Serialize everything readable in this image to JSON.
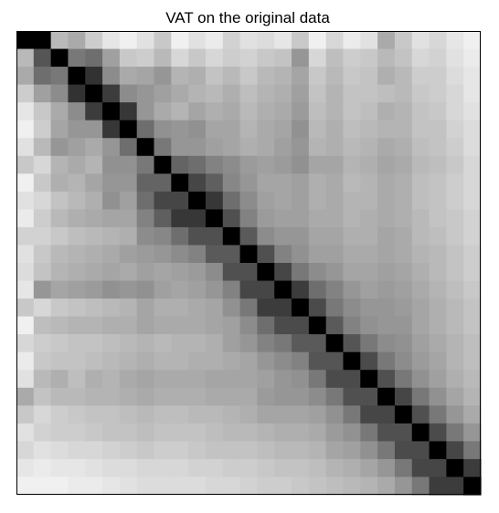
{
  "chart_data": {
    "type": "heatmap",
    "title": "VAT on the original data",
    "n": 27,
    "value_range": [
      0,
      255
    ],
    "colormap": "gray",
    "grid": false,
    "xticks": "none",
    "yticks": "none",
    "matrix": [
      [
        0,
        0,
        185,
        170,
        205,
        230,
        240,
        225,
        200,
        240,
        225,
        235,
        210,
        225,
        220,
        230,
        200,
        240,
        215,
        235,
        225,
        170,
        200,
        225,
        215,
        230,
        240
      ],
      [
        185,
        85,
        0,
        120,
        110,
        160,
        200,
        205,
        185,
        215,
        200,
        215,
        205,
        210,
        200,
        195,
        150,
        215,
        190,
        205,
        200,
        185,
        195,
        215,
        210,
        225,
        235
      ],
      [
        170,
        110,
        120,
        0,
        50,
        140,
        170,
        165,
        150,
        180,
        175,
        195,
        185,
        200,
        185,
        180,
        165,
        200,
        185,
        200,
        195,
        175,
        185,
        205,
        205,
        220,
        230
      ],
      [
        205,
        160,
        140,
        50,
        0,
        60,
        140,
        150,
        160,
        170,
        180,
        185,
        175,
        190,
        180,
        175,
        160,
        195,
        180,
        195,
        195,
        190,
        185,
        200,
        205,
        215,
        230
      ],
      [
        230,
        200,
        170,
        140,
        60,
        0,
        55,
        150,
        170,
        180,
        165,
        175,
        170,
        185,
        175,
        170,
        155,
        190,
        180,
        195,
        190,
        175,
        180,
        195,
        200,
        215,
        225
      ],
      [
        240,
        205,
        165,
        150,
        150,
        55,
        0,
        110,
        145,
        150,
        145,
        165,
        165,
        180,
        170,
        165,
        145,
        185,
        175,
        190,
        185,
        180,
        180,
        195,
        195,
        210,
        220
      ],
      [
        225,
        185,
        150,
        160,
        170,
        150,
        110,
        0,
        120,
        150,
        150,
        160,
        165,
        175,
        170,
        160,
        150,
        180,
        175,
        185,
        180,
        170,
        175,
        190,
        195,
        205,
        220
      ],
      [
        200,
        215,
        180,
        170,
        180,
        145,
        145,
        120,
        0,
        100,
        110,
        130,
        140,
        155,
        160,
        155,
        145,
        165,
        165,
        180,
        175,
        165,
        170,
        185,
        190,
        200,
        215
      ],
      [
        240,
        200,
        175,
        180,
        165,
        150,
        150,
        100,
        100,
        0,
        70,
        95,
        135,
        150,
        165,
        165,
        160,
        175,
        170,
        185,
        180,
        170,
        175,
        190,
        195,
        205,
        215
      ],
      [
        225,
        215,
        195,
        185,
        175,
        145,
        160,
        110,
        70,
        70,
        0,
        55,
        110,
        140,
        160,
        165,
        160,
        175,
        170,
        180,
        180,
        170,
        175,
        190,
        195,
        205,
        215
      ],
      [
        235,
        205,
        185,
        175,
        170,
        165,
        165,
        130,
        95,
        55,
        55,
        0,
        80,
        130,
        155,
        160,
        160,
        170,
        170,
        180,
        175,
        170,
        175,
        185,
        195,
        200,
        210
      ],
      [
        210,
        210,
        200,
        190,
        185,
        180,
        175,
        140,
        135,
        110,
        80,
        80,
        0,
        90,
        140,
        150,
        150,
        165,
        165,
        175,
        175,
        165,
        170,
        185,
        190,
        200,
        210
      ],
      [
        225,
        200,
        185,
        180,
        175,
        170,
        160,
        155,
        150,
        140,
        130,
        90,
        90,
        0,
        80,
        130,
        145,
        160,
        160,
        170,
        170,
        165,
        170,
        180,
        185,
        195,
        205
      ],
      [
        220,
        195,
        180,
        175,
        170,
        165,
        170,
        160,
        165,
        160,
        155,
        140,
        80,
        80,
        0,
        70,
        120,
        140,
        150,
        165,
        165,
        160,
        165,
        175,
        185,
        195,
        205
      ],
      [
        230,
        150,
        165,
        160,
        155,
        145,
        150,
        145,
        160,
        165,
        160,
        150,
        130,
        70,
        70,
        0,
        60,
        110,
        130,
        150,
        160,
        155,
        160,
        170,
        180,
        190,
        200
      ],
      [
        200,
        215,
        200,
        195,
        190,
        185,
        180,
        165,
        175,
        175,
        170,
        165,
        145,
        120,
        60,
        60,
        0,
        75,
        120,
        140,
        150,
        150,
        155,
        165,
        175,
        185,
        195
      ],
      [
        240,
        190,
        185,
        180,
        180,
        175,
        175,
        165,
        170,
        170,
        170,
        165,
        160,
        140,
        110,
        75,
        75,
        0,
        90,
        130,
        145,
        150,
        150,
        165,
        175,
        185,
        195
      ],
      [
        215,
        205,
        200,
        195,
        195,
        190,
        185,
        180,
        185,
        180,
        180,
        175,
        160,
        150,
        130,
        120,
        90,
        90,
        0,
        85,
        120,
        140,
        145,
        160,
        170,
        180,
        190
      ],
      [
        235,
        200,
        195,
        195,
        190,
        185,
        180,
        175,
        180,
        180,
        175,
        175,
        170,
        165,
        150,
        140,
        130,
        85,
        85,
        0,
        75,
        120,
        140,
        155,
        165,
        180,
        190
      ],
      [
        225,
        185,
        175,
        190,
        175,
        180,
        170,
        165,
        170,
        170,
        170,
        165,
        165,
        165,
        160,
        150,
        145,
        120,
        75,
        75,
        0,
        80,
        120,
        145,
        160,
        175,
        185
      ],
      [
        170,
        195,
        185,
        185,
        180,
        180,
        175,
        170,
        175,
        175,
        175,
        170,
        170,
        170,
        155,
        150,
        150,
        140,
        120,
        80,
        80,
        0,
        70,
        120,
        145,
        165,
        180
      ],
      [
        200,
        215,
        205,
        200,
        195,
        195,
        190,
        185,
        190,
        190,
        185,
        185,
        180,
        175,
        165,
        165,
        165,
        160,
        145,
        120,
        70,
        70,
        0,
        80,
        120,
        150,
        170
      ],
      [
        225,
        210,
        205,
        205,
        200,
        195,
        195,
        190,
        195,
        195,
        195,
        190,
        185,
        185,
        180,
        175,
        175,
        170,
        155,
        145,
        120,
        80,
        80,
        0,
        75,
        120,
        150
      ],
      [
        215,
        225,
        220,
        215,
        215,
        210,
        205,
        200,
        205,
        205,
        200,
        195,
        195,
        195,
        190,
        185,
        185,
        180,
        165,
        160,
        145,
        120,
        75,
        75,
        0,
        70,
        120
      ],
      [
        230,
        235,
        230,
        230,
        225,
        220,
        220,
        215,
        215,
        215,
        210,
        210,
        205,
        205,
        200,
        195,
        195,
        190,
        180,
        175,
        165,
        150,
        120,
        70,
        70,
        0,
        60
      ],
      [
        240,
        240,
        240,
        235,
        235,
        230,
        225,
        220,
        220,
        220,
        220,
        215,
        215,
        210,
        205,
        205,
        200,
        195,
        190,
        185,
        180,
        170,
        150,
        120,
        60,
        60,
        0
      ]
    ]
  }
}
